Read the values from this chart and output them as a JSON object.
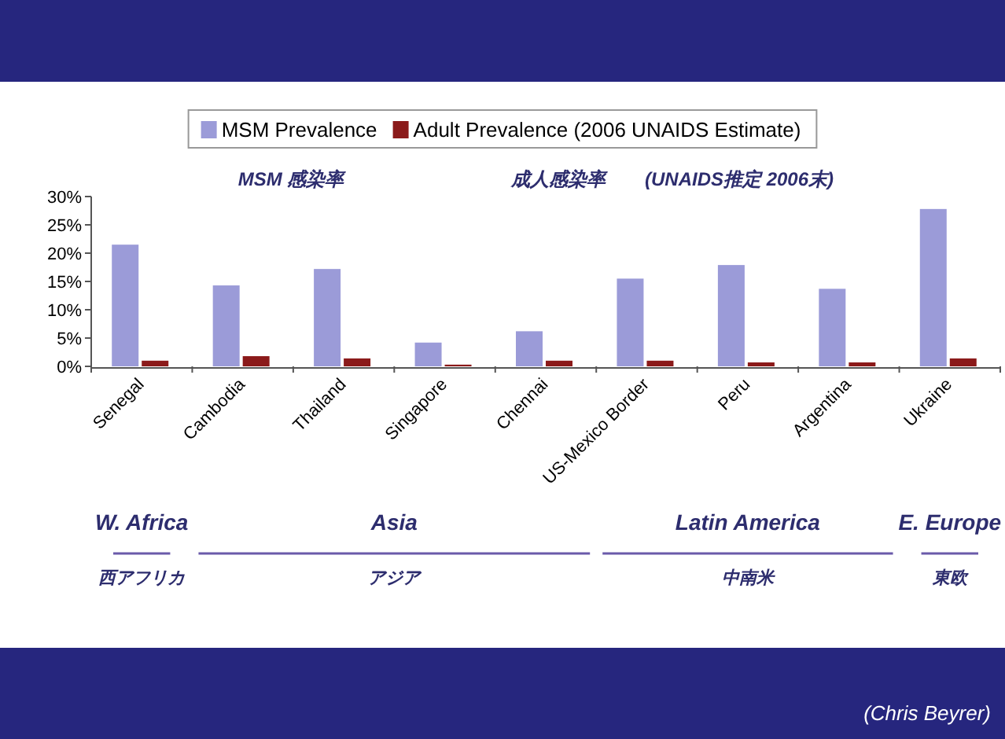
{
  "chart_data": {
    "type": "bar",
    "categories": [
      "Senegal",
      "Cambodia",
      "Thailand",
      "Singapore",
      "Chennai",
      "US-Mexico Border",
      "Peru",
      "Argentina",
      "Ukraine"
    ],
    "series": [
      {
        "name": "MSM Prevalence",
        "color": "#9b9bd8",
        "values": [
          21.5,
          14.3,
          17.2,
          4.2,
          6.2,
          15.5,
          17.9,
          13.7,
          27.8
        ]
      },
      {
        "name": "Adult Prevalence (2006 UNAIDS Estimate)",
        "color": "#8b1a1a",
        "values": [
          1.0,
          1.8,
          1.4,
          0.3,
          1.0,
          1.0,
          0.7,
          0.7,
          1.4
        ]
      }
    ],
    "ylim": [
      0,
      30
    ],
    "yticks": [
      {
        "value": 0,
        "label": "0%"
      },
      {
        "value": 5,
        "label": "5%"
      },
      {
        "value": 10,
        "label": "10%"
      },
      {
        "value": 15,
        "label": "15%"
      },
      {
        "value": 20,
        "label": "20%"
      },
      {
        "value": 25,
        "label": "25%"
      },
      {
        "value": 30,
        "label": "30%"
      }
    ],
    "legend": "top",
    "annotations": [
      "MSM 感染率",
      "成人感染率",
      "(UNAIDS推定 2006末)",
      "W. Africa",
      "Asia",
      "Latin America",
      "E. Europe",
      "西アフリカ",
      "アジア",
      "中南米",
      "東欧",
      "(Chris Beyrer)"
    ]
  }
}
